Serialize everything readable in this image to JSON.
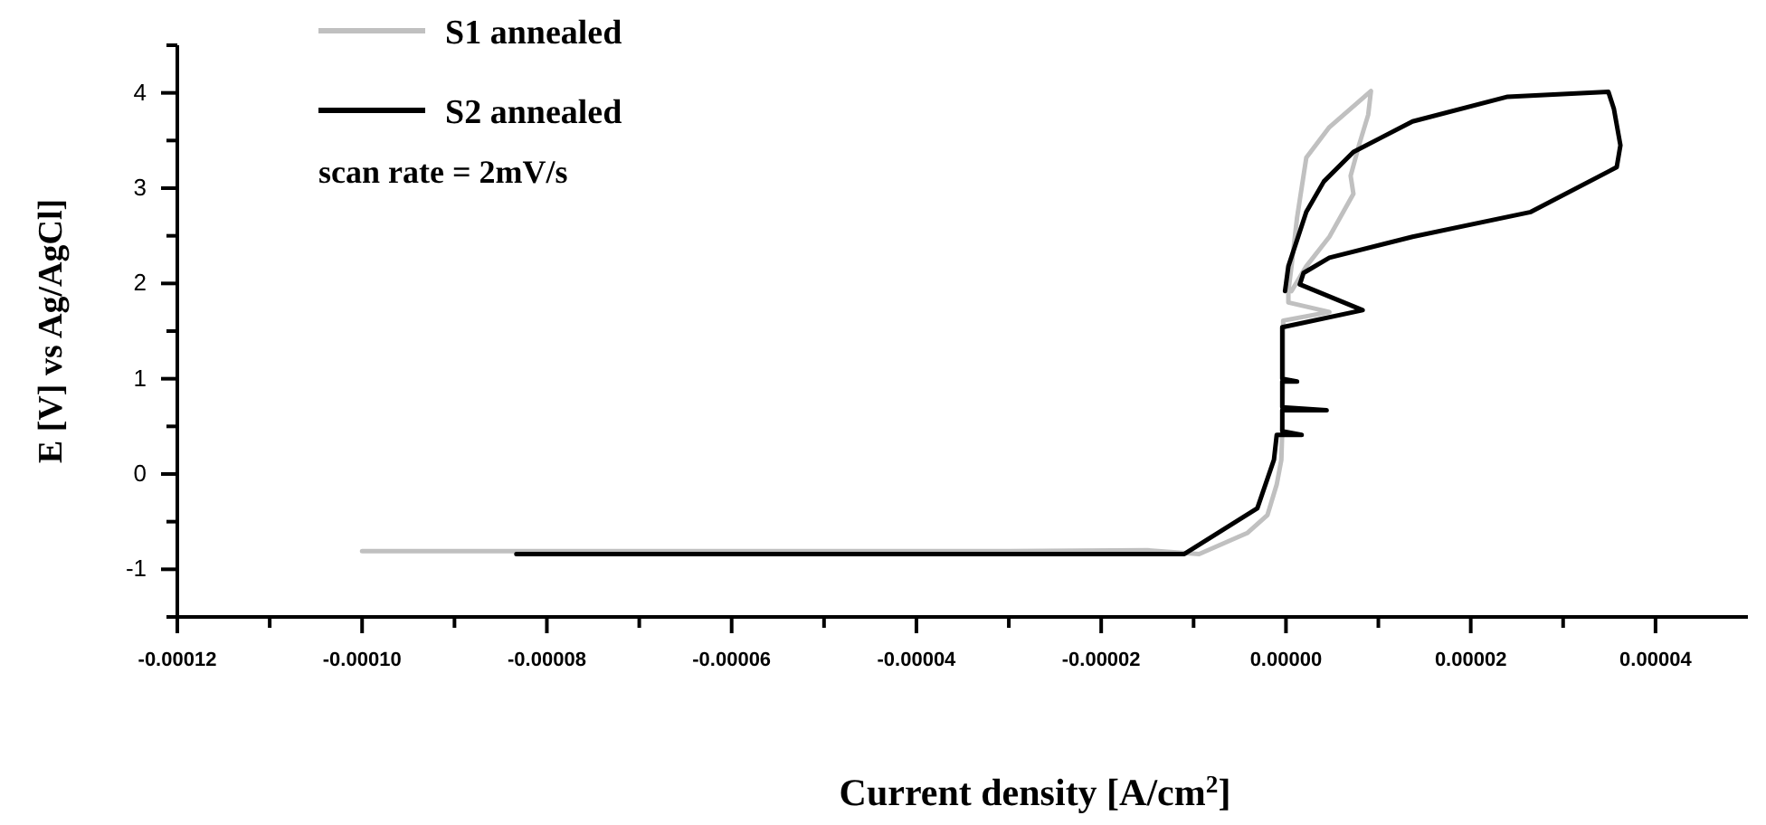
{
  "chart_data": {
    "type": "line",
    "xlabel": "Current density [A/cm$^{2}$]",
    "ylabel": "E [V] vs Ag/AgCl]",
    "annotations": [
      "scan rate = 2mV/s"
    ],
    "xlim": [
      -0.00012,
      5e-05
    ],
    "ylim": [
      -1.5,
      4.5
    ],
    "xticks": [
      {
        "value": -0.00012,
        "label": "-0.00012"
      },
      {
        "value": -0.00011,
        "label": null
      },
      {
        "value": -0.0001,
        "label": "-0.00010"
      },
      {
        "value": -9e-05,
        "label": null
      },
      {
        "value": -8e-05,
        "label": "-0.00008"
      },
      {
        "value": -7e-05,
        "label": null
      },
      {
        "value": -6e-05,
        "label": "-0.00006"
      },
      {
        "value": -5e-05,
        "label": null
      },
      {
        "value": -4e-05,
        "label": "-0.00004"
      },
      {
        "value": -3e-05,
        "label": null
      },
      {
        "value": -2e-05,
        "label": "-0.00002"
      },
      {
        "value": -1e-05,
        "label": null
      },
      {
        "value": 0,
        "label": "0.00000"
      },
      {
        "value": 1e-05,
        "label": null
      },
      {
        "value": 2e-05,
        "label": "0.00002"
      },
      {
        "value": 3e-05,
        "label": null
      },
      {
        "value": 4e-05,
        "label": "0.00004"
      }
    ],
    "yticks": [
      {
        "value": -1.5,
        "label": null
      },
      -1,
      {
        "value": -0.5,
        "label": null
      },
      0,
      {
        "value": 0.5,
        "label": null
      },
      1,
      {
        "value": 1.5,
        "label": null
      },
      2,
      {
        "value": 2.5,
        "label": null
      },
      3,
      {
        "value": 3.5,
        "label": null
      },
      4,
      {
        "value": 4.5,
        "label": null
      }
    ],
    "grid": false,
    "legend": "top left",
    "line_style": "solid",
    "series": [
      {
        "name": "S1 annealed",
        "color": "#c0c0c0",
        "x": [
          -0.0001,
          -3e-05,
          -1.5e-05,
          -9.4e-06,
          -4.2e-06,
          -2e-06,
          -1e-06,
          -5e-07,
          -4e-07,
          -3e-07,
          -3e-07,
          4.7e-06,
          2.6e-07,
          2.6e-07,
          6e-07,
          1.2e-06,
          2.2e-06,
          4.7e-06,
          9.2e-06,
          8.9e-06,
          7.9e-06,
          7e-06,
          7.3e-06,
          4.7e-06,
          2.2e-06,
          6e-07
        ],
        "values": [
          -0.81,
          -0.81,
          -0.8,
          -0.84,
          -0.62,
          -0.43,
          -0.11,
          0.15,
          0.46,
          1.0,
          1.61,
          1.7,
          1.8,
          1.92,
          2.18,
          2.69,
          3.32,
          3.64,
          4.02,
          3.77,
          3.45,
          3.13,
          2.94,
          2.49,
          2.18,
          1.92
        ]
      },
      {
        "name": "S2 annealed",
        "color": "#000000",
        "x": [
          -8.33e-05,
          -3e-05,
          -1.1e-05,
          -3.1e-06,
          -1.3e-06,
          -1e-06,
          -4e-07,
          1.7e-06,
          -4e-07,
          -4e-07,
          4.4e-06,
          -4e-07,
          -4e-07,
          1.2e-06,
          -4e-07,
          -4e-07,
          8.3e-06,
          1.5e-06,
          1.9e-06,
          4.7e-06,
          1.37e-05,
          2.65e-05,
          3.58e-05,
          3.62e-05,
          3.55e-05,
          3.49e-05,
          2.4e-05,
          1.37e-05,
          7.3e-06,
          4.1e-06,
          2.2e-06,
          2.6e-07,
          -1e-07
        ],
        "values": [
          -0.84,
          -0.84,
          -0.84,
          -0.36,
          0.15,
          0.41,
          0.41,
          0.41,
          0.45,
          0.67,
          0.67,
          0.7,
          0.97,
          0.97,
          1.0,
          1.54,
          1.72,
          1.99,
          2.11,
          2.27,
          2.49,
          2.75,
          3.22,
          3.45,
          3.83,
          4.01,
          3.96,
          3.7,
          3.38,
          3.07,
          2.75,
          2.18,
          1.92
        ]
      }
    ]
  }
}
